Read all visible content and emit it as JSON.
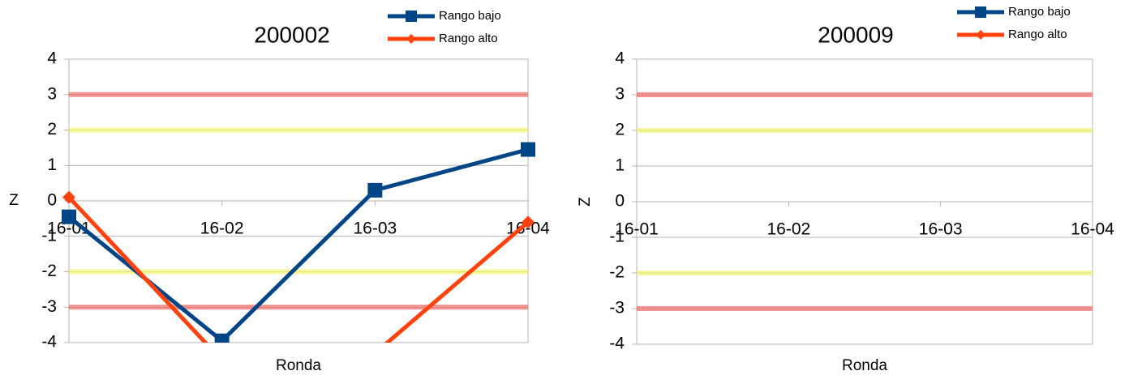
{
  "chart_data": [
    {
      "type": "line",
      "title": "200002",
      "x_label": "Ronda",
      "y_label": "Z",
      "categories": [
        "16-01",
        "16-02",
        "16-03",
        "16-04"
      ],
      "ylim": [
        -4,
        4
      ],
      "yticks": [
        -4,
        -3,
        -2,
        -1,
        0,
        1,
        2,
        3,
        4
      ],
      "grid": true,
      "reference_lines": [
        {
          "value": 3,
          "color": "#f07070"
        },
        {
          "value": 2,
          "color": "#f4f47a"
        },
        {
          "value": -2,
          "color": "#f4f47a"
        },
        {
          "value": -3,
          "color": "#f07070"
        }
      ],
      "series": [
        {
          "name": "Rango bajo",
          "color": "#004586",
          "marker": "square",
          "values": [
            -0.45,
            -3.95,
            0.3,
            1.45
          ]
        },
        {
          "name": "Rango alto",
          "color": "#ff420e",
          "marker": "diamond",
          "values": [
            0.1,
            -4.5,
            -4.3,
            -0.6
          ]
        }
      ]
    },
    {
      "type": "line",
      "title": "200009",
      "x_label": "Ronda",
      "y_label": "Z",
      "categories": [
        "16-01",
        "16-02",
        "16-03",
        "16-04"
      ],
      "ylim": [
        -4,
        4
      ],
      "yticks": [
        -4,
        -3,
        -2,
        -1,
        0,
        1,
        2,
        3,
        4
      ],
      "grid": true,
      "reference_lines": [
        {
          "value": 3,
          "color": "#f07070"
        },
        {
          "value": 2,
          "color": "#f4f47a"
        },
        {
          "value": -2,
          "color": "#f4f47a"
        },
        {
          "value": -3,
          "color": "#f07070"
        }
      ],
      "series": [
        {
          "name": "Rango bajo",
          "color": "#004586",
          "marker": "square",
          "values": [
            null,
            null,
            null,
            null
          ]
        },
        {
          "name": "Rango alto",
          "color": "#ff420e",
          "marker": "diamond",
          "values": [
            null,
            null,
            null,
            null
          ]
        }
      ]
    }
  ]
}
